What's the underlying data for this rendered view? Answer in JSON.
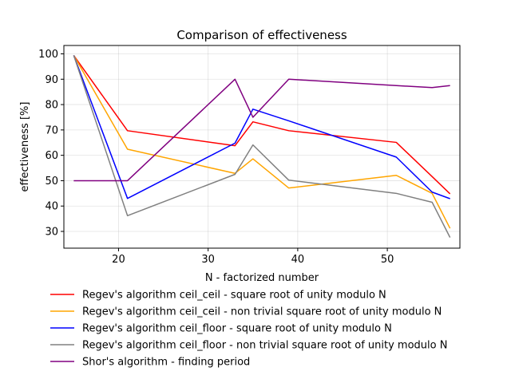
{
  "chart_data": {
    "type": "line",
    "title": "Comparison of effectiveness",
    "xlabel": "N - factorized number",
    "ylabel": "effectiveness [%]",
    "xlim": [
      13.9,
      58.1
    ],
    "ylim": [
      23.4,
      103.3
    ],
    "xticks": [
      20,
      30,
      40,
      50
    ],
    "yticks": [
      30,
      40,
      50,
      60,
      70,
      80,
      90,
      100
    ],
    "grid": true,
    "legend_position": "below",
    "series": [
      {
        "name": "Regev's algorithm ceil_ceil - square root of unity modulo N",
        "color": "#ff0000",
        "x": [
          15,
          21,
          33,
          35,
          39,
          51,
          55,
          57
        ],
        "y": [
          99.4,
          69.7,
          63.8,
          73.2,
          69.7,
          65.1,
          51.6,
          44.8
        ]
      },
      {
        "name": "Regev's algorithm ceil_ceil - non trivial square root of unity modulo N",
        "color": "#ffa500",
        "x": [
          15,
          21,
          33,
          35,
          39,
          51,
          55,
          57
        ],
        "y": [
          99.4,
          62.4,
          52.9,
          58.6,
          47.1,
          52.1,
          45.0,
          31.2
        ]
      },
      {
        "name": "Regev's algorithm ceil_floor - square root of unity modulo N",
        "color": "#0000ff",
        "x": [
          15,
          21,
          33,
          35,
          39,
          51,
          55,
          57
        ],
        "y": [
          99.4,
          43.0,
          64.8,
          78.2,
          73.6,
          59.3,
          45.5,
          42.9
        ]
      },
      {
        "name": "Regev's algorithm ceil_floor - non trivial square root of unity modulo N",
        "color": "#808080",
        "x": [
          15,
          21,
          33,
          35,
          39,
          51,
          55,
          57
        ],
        "y": [
          99.4,
          36.2,
          52.5,
          64.1,
          50.2,
          45.0,
          41.5,
          27.6
        ]
      },
      {
        "name": "Shor's algorithm - finding period",
        "color": "#800080",
        "x": [
          15,
          21,
          33,
          35,
          39,
          51,
          55,
          57
        ],
        "y": [
          50.0,
          50.0,
          90.0,
          75.0,
          90.0,
          87.5,
          86.7,
          87.5
        ]
      }
    ]
  }
}
